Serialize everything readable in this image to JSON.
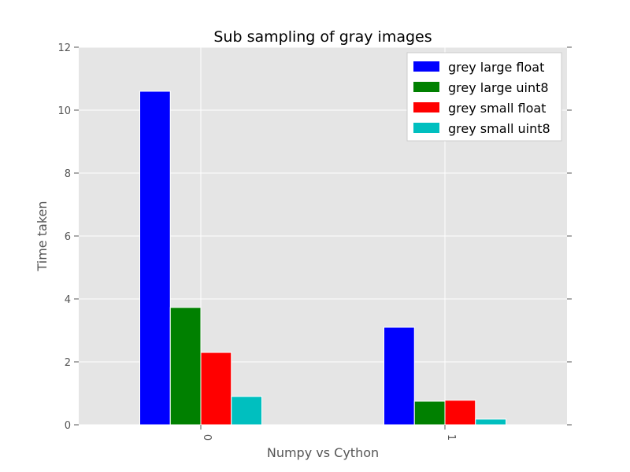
{
  "chart_data": {
    "type": "bar",
    "title": "Sub sampling of gray images",
    "xlabel": "Numpy vs Cython",
    "ylabel": "Time taken",
    "categories": [
      "0",
      "1"
    ],
    "ylim": [
      0,
      12
    ],
    "yticks": [
      "0",
      "2",
      "4",
      "6",
      "8",
      "10",
      "12"
    ],
    "grid": true,
    "legend_position": "top-right",
    "series": [
      {
        "name": "grey large float",
        "color": "#0000ff",
        "values": [
          10.6,
          3.1
        ]
      },
      {
        "name": "grey large uint8",
        "color": "#008000",
        "values": [
          3.73,
          0.75
        ]
      },
      {
        "name": "grey small float",
        "color": "#ff0000",
        "values": [
          2.3,
          0.78
        ]
      },
      {
        "name": "grey small uint8",
        "color": "#00bfbf",
        "values": [
          0.9,
          0.18
        ]
      }
    ],
    "plot_background": "#e5e5e5"
  }
}
